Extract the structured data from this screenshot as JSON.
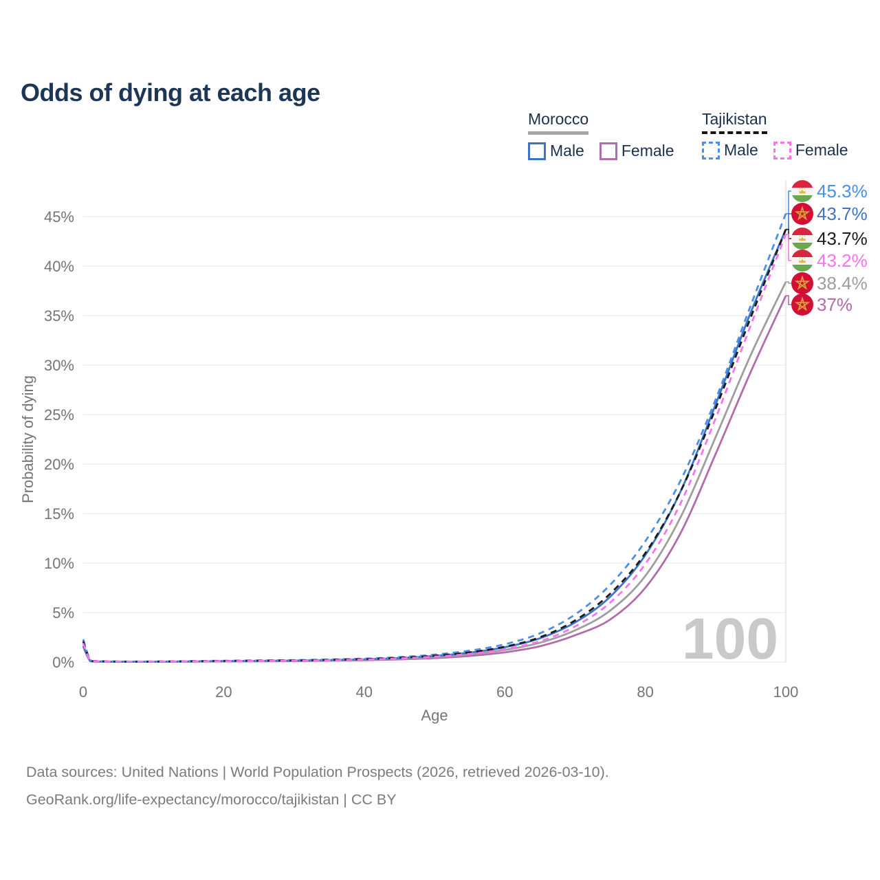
{
  "title": "Odds of dying at each age",
  "legend": {
    "groups": [
      {
        "country": "Morocco",
        "line_style": "solid",
        "underline_color": "#a6a6a6",
        "items": [
          {
            "label": "Male",
            "color": "#3d74c4"
          },
          {
            "label": "Female",
            "color": "#b16cab"
          }
        ]
      },
      {
        "country": "Tajikistan",
        "line_style": "dashed",
        "underline_color": "#141414",
        "items": [
          {
            "label": "Male",
            "color": "#4a8fe8"
          },
          {
            "label": "Female",
            "color": "#f973ef"
          }
        ]
      }
    ]
  },
  "chart_data": {
    "type": "line",
    "title": "Odds of dying at each age",
    "xlabel": "Age",
    "ylabel": "Probability of dying",
    "x_ticks": [
      0,
      20,
      40,
      60,
      80,
      100
    ],
    "y_tick_labels": [
      "0%",
      "5%",
      "10%",
      "15%",
      "20%",
      "25%",
      "30%",
      "35%",
      "40%",
      "45%"
    ],
    "y_ticks_percent": [
      0,
      5,
      10,
      15,
      20,
      25,
      30,
      35,
      40,
      45
    ],
    "xlim": [
      0,
      100
    ],
    "ylim_percent": [
      0,
      48
    ],
    "grid": "horizontal",
    "age_cursor": "100",
    "ages": [
      0,
      1,
      2,
      5,
      10,
      15,
      20,
      25,
      30,
      35,
      40,
      45,
      50,
      55,
      60,
      65,
      70,
      75,
      80,
      85,
      90,
      95,
      100
    ],
    "series": [
      {
        "id": "morocco_female",
        "name": "Morocco Female",
        "country": "Morocco",
        "sex": "Female",
        "style": "solid",
        "color": "#b16cab",
        "values": [
          1.55,
          0.1,
          0.05,
          0.03,
          0.03,
          0.05,
          0.06,
          0.08,
          0.1,
          0.14,
          0.19,
          0.27,
          0.4,
          0.62,
          0.98,
          1.6,
          2.7,
          4.3,
          7.5,
          13.0,
          21.0,
          29.3,
          37.0
        ]
      },
      {
        "id": "morocco_all",
        "name": "Morocco",
        "country": "Morocco",
        "sex": "All",
        "style": "solid",
        "color": "#9e9e9e",
        "values": [
          1.6,
          0.11,
          0.06,
          0.04,
          0.04,
          0.05,
          0.08,
          0.1,
          0.13,
          0.17,
          0.23,
          0.33,
          0.5,
          0.78,
          1.22,
          1.95,
          3.2,
          5.2,
          8.7,
          14.6,
          22.7,
          31.0,
          38.4
        ]
      },
      {
        "id": "morocco_male",
        "name": "Morocco Male",
        "country": "Morocco",
        "sex": "Male",
        "style": "solid",
        "color": "#3d74c4",
        "values": [
          1.65,
          0.12,
          0.06,
          0.04,
          0.04,
          0.06,
          0.09,
          0.12,
          0.15,
          0.2,
          0.28,
          0.4,
          0.62,
          0.95,
          1.5,
          2.4,
          4.0,
          6.6,
          10.8,
          17.2,
          26.0,
          35.3,
          43.7
        ]
      },
      {
        "id": "tajikistan_male",
        "name": "Tajikistan Male",
        "country": "Tajikistan",
        "sex": "Male",
        "style": "dashed",
        "color": "#4a8fe8",
        "values": [
          2.3,
          0.2,
          0.1,
          0.06,
          0.06,
          0.09,
          0.13,
          0.16,
          0.2,
          0.26,
          0.35,
          0.5,
          0.75,
          1.15,
          1.8,
          2.9,
          4.8,
          7.8,
          12.2,
          18.3,
          26.5,
          36.0,
          45.3
        ]
      },
      {
        "id": "tajikistan_all",
        "name": "Tajikistan",
        "country": "Tajikistan",
        "sex": "All",
        "style": "dashed",
        "color": "#1c1c1c",
        "values": [
          2.1,
          0.17,
          0.09,
          0.05,
          0.05,
          0.08,
          0.11,
          0.14,
          0.17,
          0.22,
          0.3,
          0.43,
          0.64,
          0.98,
          1.55,
          2.5,
          4.2,
          6.9,
          11.0,
          17.2,
          25.6,
          34.8,
          43.7
        ]
      },
      {
        "id": "tajikistan_female",
        "name": "Tajikistan Female",
        "country": "Tajikistan",
        "sex": "Female",
        "style": "dashed",
        "color": "#f973ef",
        "values": [
          1.9,
          0.15,
          0.08,
          0.05,
          0.05,
          0.07,
          0.09,
          0.11,
          0.14,
          0.18,
          0.25,
          0.36,
          0.54,
          0.82,
          1.3,
          2.1,
          3.6,
          6.0,
          9.9,
          16.0,
          24.6,
          34.0,
          43.2
        ]
      }
    ],
    "end_labels": [
      {
        "flag": "tajikistan",
        "series": "tajikistan_male",
        "text": "45.3%",
        "value": 45.3,
        "color": "#4a8fe8"
      },
      {
        "flag": "morocco",
        "series": "morocco_male",
        "text": "43.7%",
        "value": 43.7,
        "color": "#3d74c4"
      },
      {
        "flag": "tajikistan",
        "series": "tajikistan_all",
        "text": "43.7%",
        "value": 43.7,
        "color": "#1c1c1c"
      },
      {
        "flag": "tajikistan",
        "series": "tajikistan_female",
        "text": "43.2%",
        "value": 43.2,
        "color": "#f973ef"
      },
      {
        "flag": "morocco",
        "series": "morocco_all",
        "text": "38.4%",
        "value": 38.4,
        "color": "#9e9e9e"
      },
      {
        "flag": "morocco",
        "series": "morocco_female",
        "text": "37%",
        "value": 37.0,
        "color": "#b16cab"
      }
    ]
  },
  "colors": {
    "title": "#1d3656",
    "legend_text": "#1b2f4e",
    "axis_text": "#757575",
    "grid": "#ededed",
    "watermark": "#c9c9c9",
    "footer": "#7b7b7b",
    "morocco_flag_red": "#d21034",
    "morocco_flag_star": "#d9a43b",
    "tajikistan_flag_red": "#d6273e",
    "tajikistan_flag_white": "#f4f4f4",
    "tajikistan_flag_green": "#69a84f",
    "tajikistan_flag_crown": "#e2b63b"
  },
  "footer": {
    "line1": "Data sources: United Nations | World Population Prospects (2026, retrieved 2026-03-10).",
    "line2": "GeoRank.org/life-expectancy/morocco/tajikistan | CC BY"
  }
}
